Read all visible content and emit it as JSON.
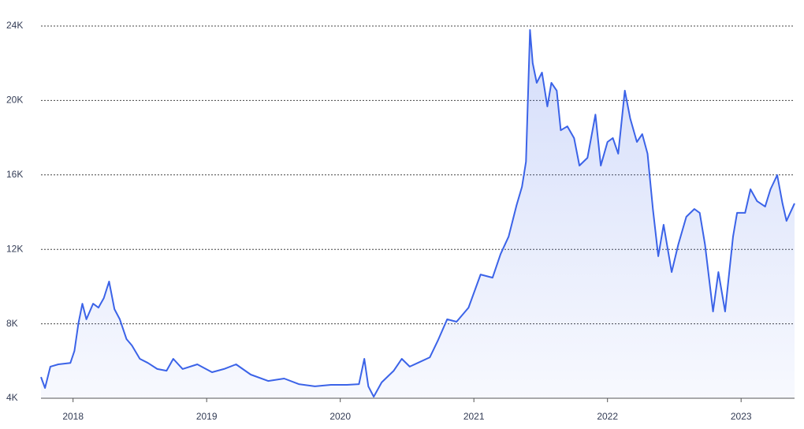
{
  "chart_data": {
    "type": "area",
    "x": [
      2017.76,
      2017.79,
      2017.83,
      2017.89,
      2017.98,
      2018.01,
      2018.04,
      2018.07,
      2018.1,
      2018.15,
      2018.19,
      2018.23,
      2018.27,
      2018.31,
      2018.35,
      2018.4,
      2018.44,
      2018.5,
      2018.56,
      2018.63,
      2018.7,
      2018.75,
      2018.82,
      2018.93,
      2019.04,
      2019.13,
      2019.22,
      2019.33,
      2019.46,
      2019.58,
      2019.69,
      2019.81,
      2019.93,
      2020.05,
      2020.14,
      2020.18,
      2020.21,
      2020.25,
      2020.31,
      2020.4,
      2020.46,
      2020.52,
      2020.58,
      2020.67,
      2020.73,
      2020.8,
      2020.87,
      2020.96,
      2021.05,
      2021.14,
      2021.2,
      2021.26,
      2021.32,
      2021.36,
      2021.39,
      2021.42,
      2021.44,
      2021.47,
      2021.51,
      2021.55,
      2021.58,
      2021.62,
      2021.65,
      2021.7,
      2021.75,
      2021.79,
      2021.85,
      2021.91,
      2021.95,
      2022.0,
      2022.04,
      2022.08,
      2022.13,
      2022.17,
      2022.22,
      2022.26,
      2022.3,
      2022.34,
      2022.38,
      2022.42,
      2022.48,
      2022.53,
      2022.59,
      2022.65,
      2022.69,
      2022.73,
      2022.79,
      2022.83,
      2022.88,
      2022.94,
      2022.97,
      2023.03,
      2023.07,
      2023.12,
      2023.18,
      2023.22,
      2023.27,
      2023.31,
      2023.34,
      2023.4
    ],
    "values": [
      5140,
      4550,
      5700,
      5820,
      5900,
      6540,
      8030,
      9080,
      8240,
      9080,
      8870,
      9380,
      10270,
      8790,
      8240,
      7180,
      6840,
      6120,
      5900,
      5570,
      5480,
      6120,
      5570,
      5820,
      5400,
      5570,
      5820,
      5270,
      4930,
      5060,
      4760,
      4640,
      4720,
      4720,
      4760,
      6120,
      4640,
      4080,
      4850,
      5480,
      6120,
      5700,
      5900,
      6200,
      7090,
      8240,
      8110,
      8870,
      10650,
      10480,
      11750,
      12690,
      14380,
      15360,
      16710,
      23790,
      22010,
      20950,
      21500,
      19680,
      20950,
      20530,
      18400,
      18610,
      17980,
      16500,
      16920,
      19240,
      16500,
      17770,
      17980,
      17140,
      20530,
      19040,
      17770,
      18190,
      17140,
      14170,
      11630,
      13320,
      10780,
      12260,
      13750,
      14170,
      13960,
      12260,
      8660,
      10780,
      8660,
      12690,
      13960,
      13960,
      15230,
      14590,
      14300,
      15230,
      15990,
      14470,
      13530,
      14470
    ],
    "color": "#3b63e8",
    "xlim": [
      2017.76,
      2023.4
    ],
    "xticks": [
      2018,
      2019,
      2020,
      2021,
      2022,
      2023
    ],
    "ylim": [
      4000,
      24000
    ],
    "yticks": [
      {
        "value": 4000,
        "label": "4K"
      },
      {
        "value": 8000,
        "label": "8K"
      },
      {
        "value": 12000,
        "label": "12K"
      },
      {
        "value": 16000,
        "label": "16K"
      },
      {
        "value": 20000,
        "label": "20K"
      },
      {
        "value": 24000,
        "label": "24K"
      }
    ],
    "grid": true
  }
}
